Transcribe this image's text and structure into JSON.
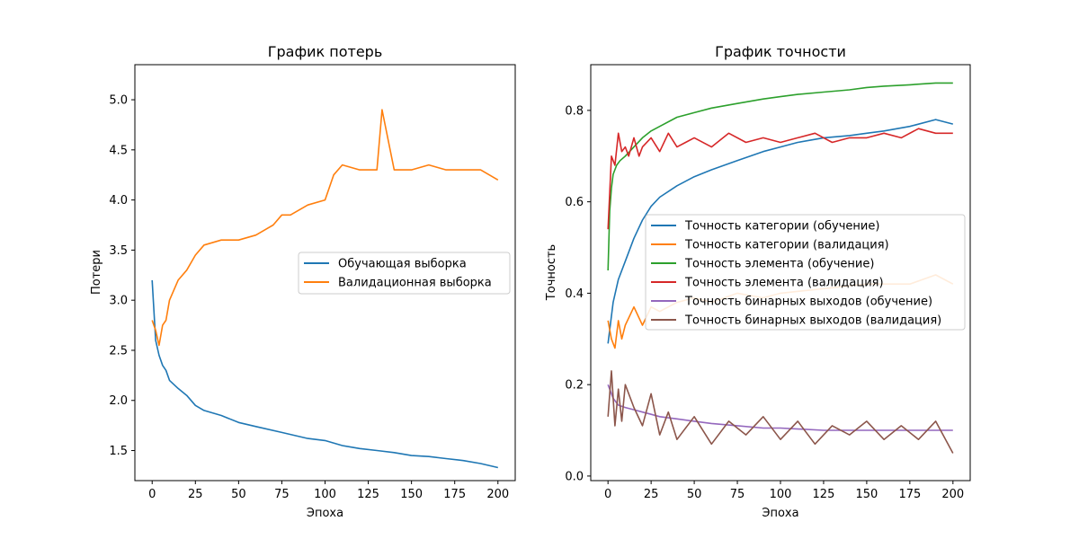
{
  "chart_data": [
    {
      "type": "line",
      "title": "График потерь",
      "xlabel": "Эпоха",
      "ylabel": "Потери",
      "xlim": [
        -10,
        210
      ],
      "ylim": [
        1.2,
        5.35
      ],
      "xticks": [
        0,
        25,
        50,
        75,
        100,
        125,
        150,
        175,
        200
      ],
      "yticks": [
        1.5,
        2.0,
        2.5,
        3.0,
        3.5,
        4.0,
        4.5,
        5.0
      ],
      "legend_position": "center-right",
      "series": [
        {
          "name": "Обучающая выборка",
          "color": "#1f77b4",
          "x": [
            0,
            2,
            4,
            6,
            8,
            10,
            15,
            20,
            25,
            30,
            40,
            50,
            60,
            75,
            90,
            100,
            110,
            120,
            130,
            140,
            150,
            160,
            170,
            180,
            190,
            200
          ],
          "y": [
            3.2,
            2.6,
            2.45,
            2.35,
            2.3,
            2.2,
            2.12,
            2.05,
            1.95,
            1.9,
            1.85,
            1.78,
            1.74,
            1.68,
            1.62,
            1.6,
            1.55,
            1.52,
            1.5,
            1.48,
            1.45,
            1.44,
            1.42,
            1.4,
            1.37,
            1.33
          ]
        },
        {
          "name": "Валидационная выборка",
          "color": "#ff7f0e",
          "x": [
            0,
            2,
            4,
            6,
            8,
            10,
            15,
            20,
            25,
            30,
            40,
            50,
            60,
            70,
            75,
            80,
            90,
            100,
            105,
            110,
            120,
            130,
            133,
            140,
            150,
            160,
            170,
            180,
            190,
            200
          ],
          "y": [
            2.8,
            2.7,
            2.55,
            2.75,
            2.8,
            3.0,
            3.2,
            3.3,
            3.45,
            3.55,
            3.6,
            3.6,
            3.65,
            3.75,
            3.85,
            3.85,
            3.95,
            4.0,
            4.25,
            4.35,
            4.3,
            4.3,
            4.9,
            4.3,
            4.3,
            4.35,
            4.3,
            4.3,
            4.3,
            4.2
          ]
        }
      ]
    },
    {
      "type": "line",
      "title": "График точности",
      "xlabel": "Эпоха",
      "ylabel": "Точность",
      "xlim": [
        -10,
        210
      ],
      "ylim": [
        -0.01,
        0.9
      ],
      "xticks": [
        0,
        25,
        50,
        75,
        100,
        125,
        150,
        175,
        200
      ],
      "yticks": [
        0.0,
        0.2,
        0.4,
        0.6,
        0.8
      ],
      "legend_position": "center-right",
      "series": [
        {
          "name": "Точность категории (обучение)",
          "color": "#1f77b4",
          "x": [
            0,
            3,
            6,
            10,
            15,
            20,
            25,
            30,
            40,
            50,
            60,
            75,
            90,
            100,
            110,
            125,
            140,
            150,
            160,
            175,
            190,
            200
          ],
          "y": [
            0.29,
            0.38,
            0.43,
            0.47,
            0.52,
            0.56,
            0.59,
            0.61,
            0.635,
            0.655,
            0.67,
            0.69,
            0.71,
            0.72,
            0.73,
            0.74,
            0.745,
            0.75,
            0.755,
            0.765,
            0.78,
            0.77
          ]
        },
        {
          "name": "Точность категории (валидация)",
          "color": "#ff7f0e",
          "x": [
            0,
            2,
            4,
            6,
            8,
            10,
            15,
            20,
            25,
            30,
            40,
            50,
            60,
            75,
            90,
            100,
            125,
            150,
            175,
            190,
            200
          ],
          "y": [
            0.34,
            0.3,
            0.28,
            0.34,
            0.3,
            0.33,
            0.37,
            0.33,
            0.37,
            0.36,
            0.38,
            0.39,
            0.38,
            0.4,
            0.39,
            0.4,
            0.41,
            0.42,
            0.42,
            0.44,
            0.42
          ]
        },
        {
          "name": "Точность элемента (обучение)",
          "color": "#2ca02c",
          "x": [
            0,
            1,
            2,
            3,
            5,
            7,
            10,
            15,
            20,
            25,
            30,
            40,
            50,
            60,
            75,
            90,
            100,
            110,
            125,
            140,
            150,
            160,
            175,
            190,
            200
          ],
          "y": [
            0.45,
            0.58,
            0.63,
            0.66,
            0.68,
            0.69,
            0.7,
            0.72,
            0.74,
            0.755,
            0.765,
            0.785,
            0.795,
            0.805,
            0.815,
            0.825,
            0.83,
            0.835,
            0.84,
            0.845,
            0.85,
            0.853,
            0.856,
            0.86,
            0.86
          ]
        },
        {
          "name": "Точность элемента (валидация)",
          "color": "#d62728",
          "x": [
            0,
            2,
            4,
            6,
            8,
            10,
            12,
            15,
            18,
            20,
            25,
            30,
            35,
            40,
            45,
            50,
            60,
            70,
            80,
            90,
            100,
            110,
            120,
            130,
            140,
            150,
            160,
            170,
            180,
            190,
            200
          ],
          "y": [
            0.54,
            0.7,
            0.68,
            0.75,
            0.71,
            0.72,
            0.7,
            0.74,
            0.7,
            0.72,
            0.74,
            0.71,
            0.75,
            0.72,
            0.73,
            0.74,
            0.72,
            0.75,
            0.73,
            0.74,
            0.73,
            0.74,
            0.75,
            0.73,
            0.74,
            0.74,
            0.75,
            0.74,
            0.76,
            0.75,
            0.75
          ]
        },
        {
          "name": "Точность бинарных выходов (обучение)",
          "color": "#9467bd",
          "x": [
            0,
            3,
            6,
            10,
            15,
            20,
            25,
            30,
            40,
            50,
            60,
            75,
            90,
            100,
            125,
            150,
            175,
            200
          ],
          "y": [
            0.2,
            0.17,
            0.155,
            0.15,
            0.145,
            0.14,
            0.135,
            0.13,
            0.125,
            0.12,
            0.115,
            0.11,
            0.105,
            0.105,
            0.1,
            0.1,
            0.1,
            0.1
          ]
        },
        {
          "name": "Точность бинарных выходов (валидация)",
          "color": "#8c564b",
          "x": [
            0,
            2,
            4,
            6,
            8,
            10,
            15,
            20,
            25,
            30,
            35,
            40,
            50,
            60,
            70,
            80,
            90,
            100,
            110,
            120,
            130,
            140,
            150,
            160,
            170,
            180,
            190,
            200
          ],
          "y": [
            0.13,
            0.23,
            0.11,
            0.19,
            0.12,
            0.2,
            0.15,
            0.11,
            0.18,
            0.09,
            0.14,
            0.08,
            0.13,
            0.07,
            0.12,
            0.09,
            0.13,
            0.08,
            0.12,
            0.07,
            0.11,
            0.09,
            0.12,
            0.08,
            0.11,
            0.08,
            0.12,
            0.05
          ]
        }
      ]
    }
  ]
}
